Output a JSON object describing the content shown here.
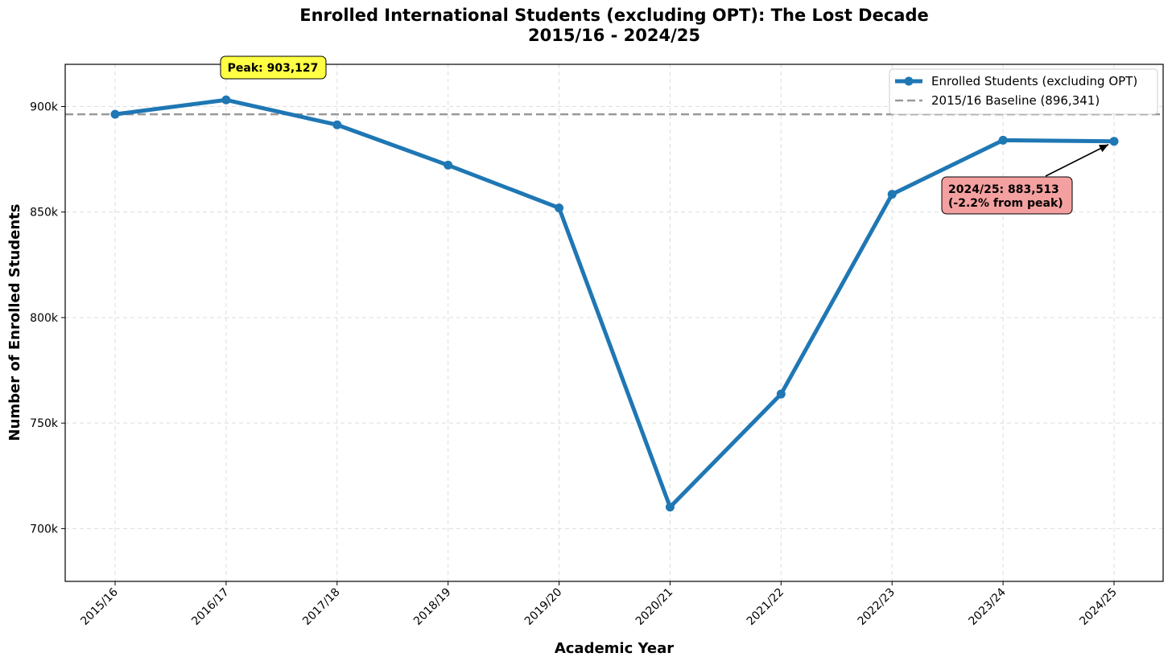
{
  "chart_data": {
    "type": "line",
    "title_line1": "Enrolled International Students (excluding OPT): The Lost Decade",
    "title_line2": "2015/16 - 2024/25",
    "xlabel": "Academic Year",
    "ylabel": "Number of Enrolled Students",
    "categories": [
      "2015/16",
      "2016/17",
      "2017/18",
      "2018/19",
      "2019/20",
      "2020/21",
      "2021/22",
      "2022/23",
      "2023/24",
      "2024/25"
    ],
    "series": [
      {
        "name": "Enrolled Students (excluding OPT)",
        "color": "#1f77b4",
        "values": [
          896341,
          903127,
          891330,
          872214,
          851957,
          710210,
          763760,
          858426,
          884051,
          883513
        ]
      }
    ],
    "baseline": {
      "label": "2015/16 Baseline (896,341)",
      "value": 896341,
      "color": "#999999"
    },
    "ylim": [
      675000,
      920000
    ],
    "yticks": [
      700000,
      750000,
      800000,
      850000,
      900000
    ],
    "ytick_labels": [
      "700k",
      "750k",
      "800k",
      "850k",
      "900k"
    ],
    "grid": true,
    "legend_position": "top-right",
    "annotations": {
      "peak": {
        "text": "Peak: 903,127",
        "category": "2016/17",
        "color": "#ffff44"
      },
      "latest": {
        "line1": "2024/25: 883,513",
        "line2": "(-2.2% from peak)",
        "category": "2024/25",
        "color": "#f4a0a0"
      }
    }
  }
}
